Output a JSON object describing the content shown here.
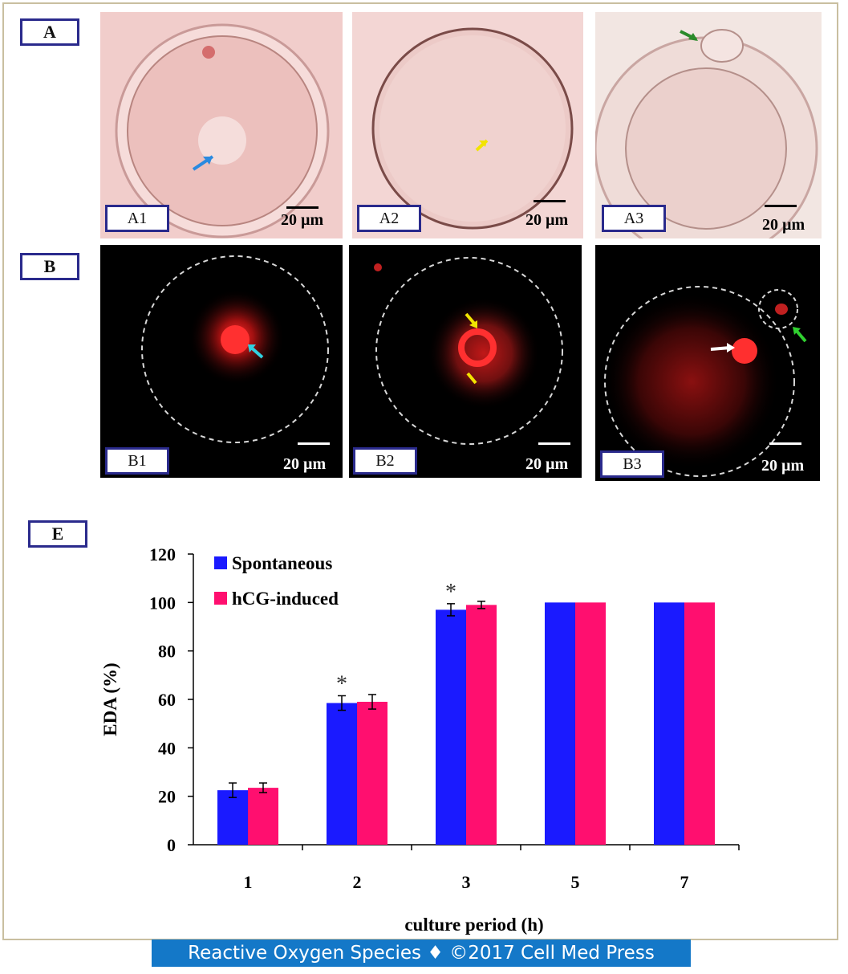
{
  "panels": {
    "A": {
      "label": "A",
      "images": [
        {
          "label": "A1",
          "scale": "20 µm"
        },
        {
          "label": "A2",
          "scale": "20 µm"
        },
        {
          "label": "A3",
          "scale": "20 µm"
        }
      ]
    },
    "B": {
      "label": "B",
      "images": [
        {
          "label": "B1",
          "scale": "20 µm"
        },
        {
          "label": "B2",
          "scale": "20 µm"
        },
        {
          "label": "B3",
          "scale": "20 µm"
        }
      ]
    },
    "E": {
      "label": "E"
    }
  },
  "chart_data": {
    "type": "bar",
    "categories": [
      "1",
      "2",
      "3",
      "5",
      "7"
    ],
    "series": [
      {
        "name": "Spontaneous",
        "color": "#1a1aff",
        "values": [
          22.5,
          58.5,
          97,
          100,
          100
        ],
        "errors": [
          3,
          3,
          2.5,
          0,
          0
        ]
      },
      {
        "name": "hCG-induced",
        "color": "#ff0f6f",
        "values": [
          23.5,
          59,
          99,
          100,
          100
        ],
        "errors": [
          2,
          3,
          1.5,
          0,
          0
        ]
      }
    ],
    "significance": [
      "",
      "*",
      "*",
      "",
      ""
    ],
    "xlabel": "culture period (h)",
    "ylabel": "EDA (%)",
    "ylim": [
      0,
      120
    ],
    "yticks": [
      0,
      20,
      40,
      60,
      80,
      100,
      120
    ],
    "legend_position": "top-left",
    "grid": false
  },
  "footer": "Reactive Oxygen Species ♦ ©2017 Cell Med Press"
}
